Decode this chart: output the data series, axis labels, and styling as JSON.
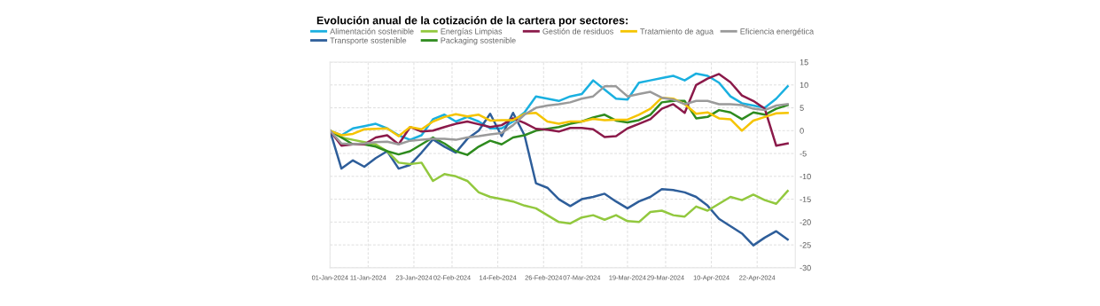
{
  "chart_data": {
    "type": "line",
    "title": "Evolución anual de la cotización de la cartera por sectores:",
    "x": [
      "2024-01-01",
      "2024-01-04",
      "2024-01-07",
      "2024-01-10",
      "2024-01-13",
      "2024-01-16",
      "2024-01-19",
      "2024-01-22",
      "2024-01-25",
      "2024-01-28",
      "2024-01-31",
      "2024-02-03",
      "2024-02-06",
      "2024-02-09",
      "2024-02-12",
      "2024-02-15",
      "2024-02-18",
      "2024-02-21",
      "2024-02-24",
      "2024-02-27",
      "2024-03-01",
      "2024-03-04",
      "2024-03-07",
      "2024-03-10",
      "2024-03-13",
      "2024-03-16",
      "2024-03-19",
      "2024-03-22",
      "2024-03-25",
      "2024-03-28",
      "2024-03-31",
      "2024-04-03",
      "2024-04-06",
      "2024-04-09",
      "2024-04-12",
      "2024-04-15",
      "2024-04-18",
      "2024-04-21",
      "2024-04-24",
      "2024-04-27",
      "2024-04-30"
    ],
    "series": [
      {
        "name": "Alimentación sostenible",
        "color": "#1ab0e0",
        "values": [
          0,
          -1,
          0.5,
          1,
          1.5,
          0.5,
          -1,
          -2,
          -1,
          2.5,
          3.5,
          2,
          3,
          2,
          0.5,
          0.5,
          2,
          4,
          7.5,
          7,
          6.5,
          7.5,
          8,
          11,
          9,
          7,
          6.8,
          10.5,
          11,
          11.5,
          12,
          11,
          12.5,
          12,
          10.5,
          7.5,
          6,
          5.5,
          5,
          7,
          9.7
        ]
      },
      {
        "name": "Transporte sostenible",
        "color": "#2e5e9a",
        "values": [
          0,
          -8.3,
          -6.5,
          -7.9,
          -6,
          -4.5,
          -8.3,
          -7.5,
          -4.8,
          -1.9,
          -3.5,
          -4.8,
          -1.8,
          0,
          3.7,
          -1.2,
          3.9,
          -1,
          -11.5,
          -12.5,
          -15,
          -16.5,
          -15,
          -14.5,
          -13.8,
          -15.5,
          -17,
          -15.5,
          -14.5,
          -12.8,
          -13,
          -13.5,
          -14.5,
          -16.4,
          -19.3,
          -20.9,
          -22.5,
          -25.1,
          -23.4,
          -22,
          -23.8
        ]
      },
      {
        "name": "Energías Limpias",
        "color": "#92c83e",
        "values": [
          0,
          -1.5,
          -2,
          -2.5,
          -3,
          -4.5,
          -7,
          -7.3,
          -7,
          -11,
          -9.5,
          -10,
          -11,
          -13.5,
          -14.5,
          -15,
          -15.5,
          -16.4,
          -17,
          -18.5,
          -20,
          -20.3,
          -19,
          -18.5,
          -19.5,
          -18.5,
          -19.8,
          -20,
          -17.8,
          -17.5,
          -18.5,
          -18.8,
          -16.6,
          -17.5,
          -16,
          -14.5,
          -15.2,
          -14,
          -15.2,
          -16,
          -13.2
        ]
      },
      {
        "name": "Packaging sostenible",
        "color": "#2e8b1e",
        "values": [
          0,
          -1.5,
          -3,
          -3,
          -3.5,
          -4.5,
          -5.2,
          -4.5,
          -3,
          -1.5,
          -2.8,
          -4.5,
          -5.3,
          -3.5,
          -2.2,
          -3,
          -1.5,
          -1,
          0,
          0.4,
          0.8,
          1.5,
          2,
          2.9,
          3.5,
          2.2,
          1.8,
          2.3,
          3.5,
          6.2,
          6.5,
          6.5,
          2.7,
          3,
          4.5,
          4,
          2.5,
          4,
          3.5,
          4.8,
          5.6
        ]
      },
      {
        "name": "Gestión de residuos",
        "color": "#8b1a4a",
        "values": [
          0,
          -3.3,
          -3,
          -3,
          -1.5,
          -1,
          -3,
          0.8,
          -0.2,
          0,
          0.8,
          1.5,
          2,
          1.4,
          0.8,
          1.2,
          2.7,
          1.7,
          0.4,
          0.2,
          -0.2,
          0.6,
          0.6,
          0.3,
          -1.4,
          -1.2,
          0.5,
          1.5,
          2.5,
          4.8,
          5.8,
          3.9,
          10,
          11.4,
          12.4,
          10.6,
          7.7,
          6.5,
          4.8,
          -3.3,
          -2.8
        ]
      },
      {
        "name": "Tratamiento de agua",
        "color": "#f5c400",
        "values": [
          0,
          -1,
          -0.7,
          0.3,
          0.4,
          0.5,
          -1.2,
          0.8,
          0.3,
          2,
          3,
          3.6,
          3.1,
          3.5,
          2.2,
          2.3,
          2.3,
          3.7,
          3.9,
          2,
          1.5,
          2,
          2,
          2.6,
          2.3,
          2.4,
          2.4,
          3.5,
          4.8,
          7.2,
          7,
          5.8,
          3.7,
          4,
          2.7,
          2.5,
          0,
          2.2,
          3,
          3.8,
          3.9
        ]
      },
      {
        "name": "Eficiencia energética",
        "color": "#9a9a9a",
        "values": [
          0,
          -2.8,
          -3,
          -2.8,
          -2.5,
          -2.4,
          -3,
          -2.2,
          -2,
          -1.8,
          -1.8,
          -2,
          -1.5,
          -1.2,
          -0.8,
          -0.5,
          1.2,
          3.5,
          5,
          5.5,
          5.8,
          6.2,
          7,
          7.5,
          9.7,
          9.7,
          7.5,
          8,
          8.5,
          7.2,
          6.8,
          5.8,
          6.5,
          6.5,
          5.8,
          5.8,
          5.6,
          4.8,
          4.5,
          5.5,
          5.8
        ]
      }
    ],
    "xlim": [
      "2024-01-01",
      "2024-05-02"
    ],
    "xticks": [
      {
        "value": "2024-01-01",
        "label": "01-Jan-2024"
      },
      {
        "value": "2024-01-11",
        "label": "11-Jan-2024"
      },
      {
        "value": "2024-01-23",
        "label": "23-Jan-2024"
      },
      {
        "value": "2024-02-02",
        "label": "02-Feb-2024"
      },
      {
        "value": "2024-02-14",
        "label": "14-Feb-2024"
      },
      {
        "value": "2024-02-26",
        "label": "26-Feb-2024"
      },
      {
        "value": "2024-03-07",
        "label": "07-Mar-2024"
      },
      {
        "value": "2024-03-19",
        "label": "19-Mar-2024"
      },
      {
        "value": "2024-03-29",
        "label": "29-Mar-2024"
      },
      {
        "value": "2024-04-10",
        "label": "10-Apr-2024"
      },
      {
        "value": "2024-04-22",
        "label": "22-Apr-2024"
      }
    ],
    "ylim": [
      -30,
      15
    ],
    "yticks": [
      -30,
      -25,
      -20,
      -15,
      -10,
      -5,
      0,
      5,
      10,
      15
    ],
    "grid": true,
    "legend": "top",
    "marker": "none",
    "line_style": "solid"
  }
}
